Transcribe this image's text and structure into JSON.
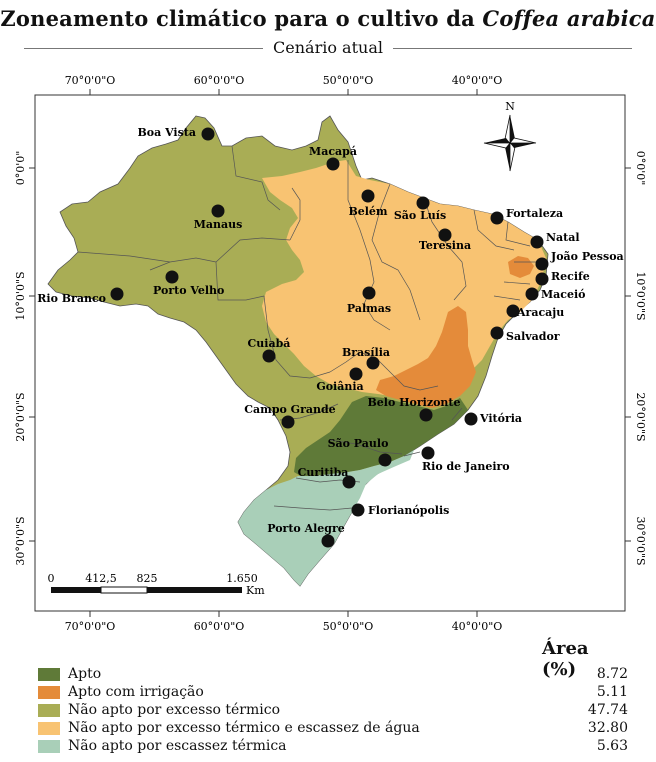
{
  "title": {
    "prefix": "Zoneamento climático para o cultivo da ",
    "species": "Coffea arabica"
  },
  "subtitle": "Cenário atual",
  "colors": {
    "apto": "#5f7a38",
    "apto_irrigacao": "#e48b3a",
    "excesso_termico": "#a9ad55",
    "excesso_termico_agua": "#f8c372",
    "escassez_termica": "#a9cfb8",
    "ocean": "#ffffff",
    "border": "#555555"
  },
  "axes": {
    "top": [
      "70°0'0\"O",
      "60°0'0\"O",
      "50°0'0\"O",
      "40°0'0\"O"
    ],
    "bottom": [
      "70°0'0\"O",
      "60°0'0\"O",
      "50°0'0\"O",
      "40°0'0\"O"
    ],
    "left": [
      "0°0'0\"",
      "10°0'0\"S",
      "20°0'0\"S",
      "30°0'0\"S"
    ],
    "right": [
      "0°0'0\"",
      "10°0'0\"S",
      "20°0'0\"S",
      "30°0'0\"S"
    ]
  },
  "north_label": "N",
  "scale_bar": {
    "labels": [
      "0",
      "412,5",
      "825",
      "1.650"
    ],
    "unit": "Km"
  },
  "cities": [
    {
      "name": "Boa Vista"
    },
    {
      "name": "Macapá"
    },
    {
      "name": "Belém"
    },
    {
      "name": "São Luís"
    },
    {
      "name": "Fortaleza"
    },
    {
      "name": "Manaus"
    },
    {
      "name": "Teresina"
    },
    {
      "name": "Natal"
    },
    {
      "name": "João Pessoa"
    },
    {
      "name": "Recife"
    },
    {
      "name": "Maceió"
    },
    {
      "name": "Aracaju"
    },
    {
      "name": "Salvador"
    },
    {
      "name": "Porto Velho"
    },
    {
      "name": "Rio Branco"
    },
    {
      "name": "Palmas"
    },
    {
      "name": "Cuiabá"
    },
    {
      "name": "Brasília"
    },
    {
      "name": "Goiânia"
    },
    {
      "name": "Belo Horizonte"
    },
    {
      "name": "Vitória"
    },
    {
      "name": "Campo Grande"
    },
    {
      "name": "São Paulo"
    },
    {
      "name": "Rio de Janeiro"
    },
    {
      "name": "Curitiba"
    },
    {
      "name": "Florianópolis"
    },
    {
      "name": "Porto Alegre"
    }
  ],
  "legend": {
    "header": "Área (%)",
    "items": [
      {
        "label": "Apto",
        "value": "8.72",
        "color": "#5f7a38"
      },
      {
        "label": "Apto com irrigação",
        "value": "5.11",
        "color": "#e48b3a"
      },
      {
        "label": "Não apto por excesso térmico",
        "value": "47.74",
        "color": "#a9ad55"
      },
      {
        "label": "Não apto por excesso térmico e escassez de água",
        "value": "32.80",
        "color": "#f8c372"
      },
      {
        "label": "Não apto por escassez térmica",
        "value": "5.63",
        "color": "#a9cfb8"
      }
    ]
  }
}
